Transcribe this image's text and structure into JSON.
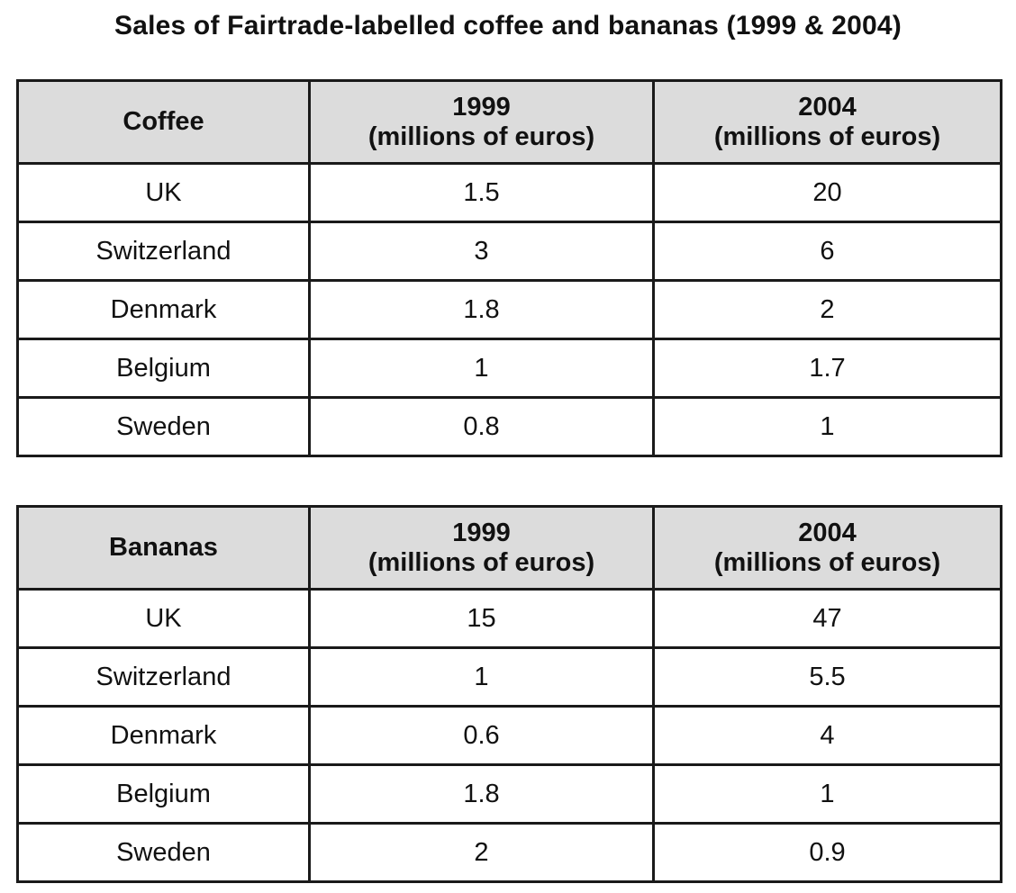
{
  "title": "Sales of Fairtrade-labelled coffee and bananas (1999 & 2004)",
  "chart_data": [
    {
      "type": "table",
      "title": "Coffee",
      "columns": [
        {
          "year": "1999",
          "unit": "(millions of euros)"
        },
        {
          "year": "2004",
          "unit": "(millions of euros)"
        }
      ],
      "rows": [
        {
          "label": "UK",
          "values": [
            "1.5",
            "20"
          ]
        },
        {
          "label": "Switzerland",
          "values": [
            "3",
            "6"
          ]
        },
        {
          "label": "Denmark",
          "values": [
            "1.8",
            "2"
          ]
        },
        {
          "label": "Belgium",
          "values": [
            "1",
            "1.7"
          ]
        },
        {
          "label": "Sweden",
          "values": [
            "0.8",
            "1"
          ]
        }
      ]
    },
    {
      "type": "table",
      "title": "Bananas",
      "columns": [
        {
          "year": "1999",
          "unit": "(millions of euros)"
        },
        {
          "year": "2004",
          "unit": "(millions of euros)"
        }
      ],
      "rows": [
        {
          "label": "UK",
          "values": [
            "15",
            "47"
          ]
        },
        {
          "label": "Switzerland",
          "values": [
            "1",
            "5.5"
          ]
        },
        {
          "label": "Denmark",
          "values": [
            "0.6",
            "4"
          ]
        },
        {
          "label": "Belgium",
          "values": [
            "1.8",
            "1"
          ]
        },
        {
          "label": "Sweden",
          "values": [
            "2",
            "0.9"
          ]
        }
      ]
    }
  ]
}
